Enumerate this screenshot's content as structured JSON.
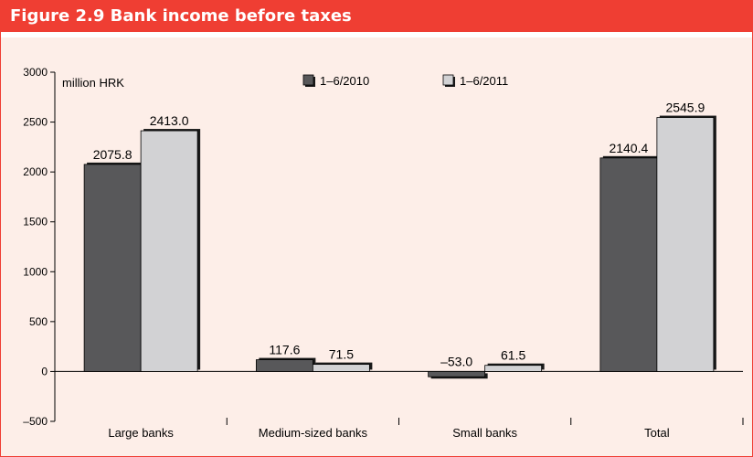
{
  "figure": {
    "title": "Figure 2.9 Bank income before taxes"
  },
  "chart_data": {
    "type": "bar",
    "title": "Figure 2.9 Bank income before taxes",
    "unit_label": "million HRK",
    "categories": [
      "Large banks",
      "Medium-sized banks",
      "Small banks",
      "Total"
    ],
    "series": [
      {
        "name": "1–6/2010",
        "values": [
          2075.8,
          117.6,
          -53.0,
          2140.4
        ],
        "value_labels": [
          "2075.8",
          "117.6",
          "–53.0",
          "2140.4"
        ],
        "color": "#58585a"
      },
      {
        "name": "1–6/2011",
        "values": [
          2413.0,
          71.5,
          61.5,
          2545.9
        ],
        "value_labels": [
          "2413.0",
          "71.5",
          "61.5",
          "2545.9"
        ],
        "color": "#d2d2d4"
      }
    ],
    "ylim": [
      -500,
      3000
    ],
    "yticks": [
      "3000",
      "2500",
      "2000",
      "1500",
      "1000",
      "500",
      "0",
      "–500"
    ],
    "ytick_values": [
      3000,
      2500,
      2000,
      1500,
      1000,
      500,
      0,
      -500
    ],
    "grid": false,
    "legend_position": "top-center",
    "colors": {
      "frame": "#ef3e33",
      "plot_background": "#fdeee8",
      "shadow": "#1a1a1a"
    }
  }
}
